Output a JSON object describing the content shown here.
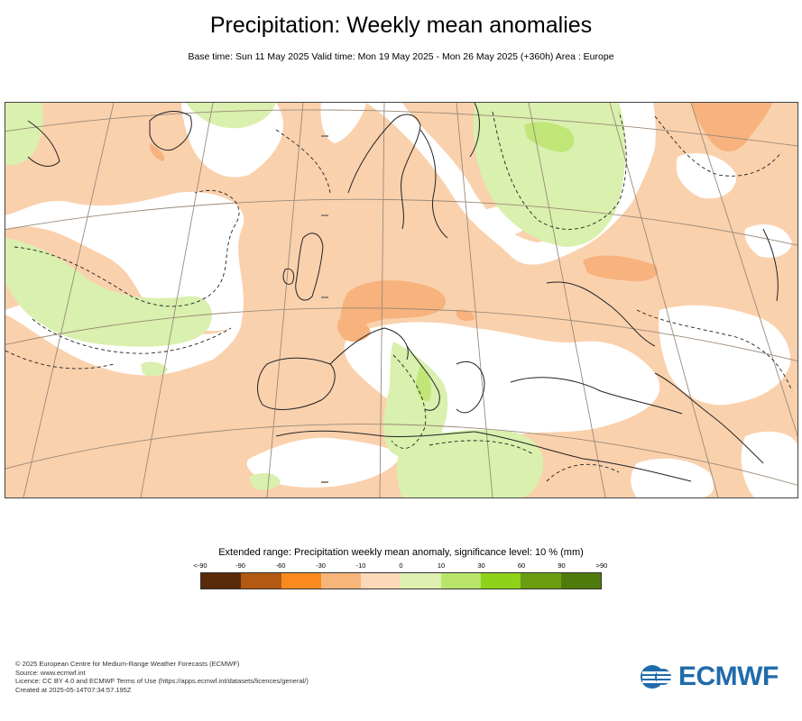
{
  "title": "Precipitation: Weekly mean anomalies",
  "subtitle": "Base time: Sun 11 May 2025 Valid time: Mon 19 May 2025 - Mon 26 May 2025 (+360h) Area : Europe",
  "legend": {
    "title": "Extended range: Precipitation weekly mean anomaly, significance level: 10 % (mm)",
    "labels": [
      "<-90",
      "-90",
      "-60",
      "-30",
      "-10",
      "0",
      "10",
      "30",
      "60",
      "90",
      ">90"
    ],
    "colors": [
      "#5a2a0a",
      "#b25a12",
      "#fa8a1e",
      "#f8b57a",
      "#fcd9b8",
      "#ddf0b0",
      "#b9e46a",
      "#8fd21a",
      "#6a9e10",
      "#4f7a0c"
    ]
  },
  "map": {
    "colors": {
      "negative_light": "#fad1ad",
      "negative_medium": "#f7b27d",
      "neutral": "#ffffff",
      "positive_light": "#d9f0ae",
      "positive_medium": "#b9e46a",
      "coastline": "#222222",
      "graticule": "#9a8a78"
    }
  },
  "footer": {
    "line1": "© 2025 European Centre for Medium-Range Weather Forecasts (ECMWF)",
    "line2": "Source: www.ecmwf.int",
    "line3": "Licence: CC BY 4.0 and ECMWF Terms of Use (https://apps.ecmwf.int/datasets/licences/general/)",
    "line4": "Created at 2025-05-14T07:34:57.195Z"
  },
  "logo": {
    "text": "ECMWF",
    "icon": "ecmwf-logo-icon"
  }
}
